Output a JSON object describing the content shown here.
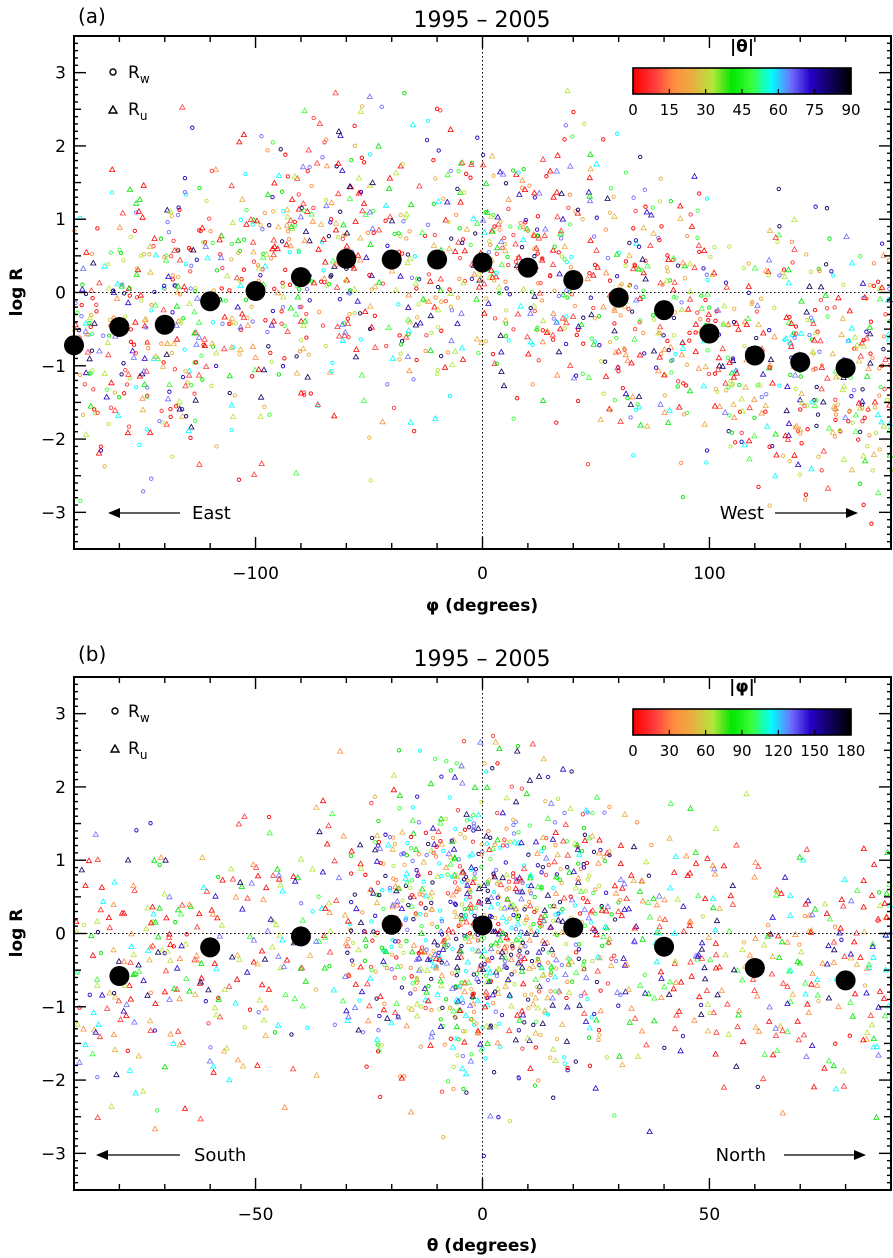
{
  "chart_data": [
    {
      "type": "scatter",
      "panel_label": "(a)",
      "title": "1995 – 2005",
      "xlabel": "φ (degrees)",
      "ylabel": "log R",
      "xlim": [
        -180,
        180
      ],
      "ylim": [
        -3.5,
        3.5
      ],
      "x_ticks": [
        -100,
        0,
        100
      ],
      "x_tick_labels": [
        "−100",
        "0",
        "100"
      ],
      "y_ticks": [
        -3,
        -2,
        -1,
        0,
        1,
        2,
        3
      ],
      "y_tick_labels": [
        "−3",
        "−2",
        "−1",
        "0",
        "1",
        "2",
        "3"
      ],
      "reference_lines": {
        "x0": 0,
        "y0": 0
      },
      "legend": {
        "placement": "top-left",
        "entries": [
          {
            "marker": "circle",
            "label": "R",
            "sub": "w"
          },
          {
            "marker": "triangle",
            "label": "R",
            "sub": "u"
          }
        ]
      },
      "colorbar": {
        "title": "|θ|",
        "placement": "top-right",
        "ticks": [
          "0",
          "15",
          "30",
          "45",
          "60",
          "75",
          "90"
        ],
        "range": [
          0,
          90
        ]
      },
      "direction_labels": {
        "left": "East",
        "right": "West"
      },
      "scatter_envelope": {
        "x": [
          -180,
          -160,
          -140,
          -120,
          -100,
          -80,
          -60,
          -40,
          -20,
          0,
          20,
          40,
          60,
          80,
          100,
          120,
          140,
          160,
          180
        ],
        "center": [
          -0.7,
          -0.5,
          -0.45,
          -0.1,
          0.1,
          0.3,
          0.5,
          0.5,
          0.5,
          0.4,
          0.35,
          0.2,
          -0.05,
          -0.25,
          -0.55,
          -0.85,
          -0.95,
          -1.05,
          -1.0
        ],
        "spread": [
          0.9,
          1.0,
          1.05,
          1.0,
          1.05,
          1.1,
          1.1,
          1.1,
          1.05,
          1.0,
          1.0,
          1.0,
          1.0,
          1.0,
          1.0,
          1.0,
          1.0,
          0.95,
          0.9
        ]
      },
      "series": [
        {
          "name": "binned mean",
          "x": [
            -180,
            -160,
            -140,
            -120,
            -100,
            -80,
            -60,
            -40,
            -20,
            0,
            20,
            40,
            60,
            80,
            100,
            120,
            140,
            160
          ],
          "y": [
            -0.72,
            -0.47,
            -0.44,
            -0.12,
            0.02,
            0.21,
            0.46,
            0.45,
            0.45,
            0.41,
            0.34,
            0.17,
            -0.07,
            -0.24,
            -0.56,
            -0.86,
            -0.95,
            -1.03
          ]
        }
      ]
    },
    {
      "type": "scatter",
      "panel_label": "(b)",
      "title": "1995 – 2005",
      "xlabel": "θ (degrees)",
      "ylabel": "log R",
      "xlim": [
        -90,
        90
      ],
      "ylim": [
        -3.5,
        3.5
      ],
      "x_ticks": [
        -50,
        0,
        50
      ],
      "x_tick_labels": [
        "−50",
        "0",
        "50"
      ],
      "y_ticks": [
        -3,
        -2,
        -1,
        0,
        1,
        2,
        3
      ],
      "y_tick_labels": [
        "−3",
        "−2",
        "−1",
        "0",
        "1",
        "2",
        "3"
      ],
      "reference_lines": {
        "x0": 0,
        "y0": 0
      },
      "legend": {
        "placement": "top-left",
        "entries": [
          {
            "marker": "circle",
            "label": "R",
            "sub": "w"
          },
          {
            "marker": "triangle",
            "label": "R",
            "sub": "u"
          }
        ]
      },
      "colorbar": {
        "title": "|φ|",
        "placement": "top-right",
        "ticks": [
          "0",
          "30",
          "60",
          "90",
          "120",
          "150",
          "180"
        ],
        "range": [
          0,
          180
        ]
      },
      "direction_labels": {
        "left": "South",
        "right": "North"
      },
      "scatter_envelope": {
        "x": [
          -90,
          -80,
          -70,
          -60,
          -50,
          -40,
          -30,
          -20,
          -10,
          0,
          10,
          20,
          30,
          40,
          50,
          60,
          70,
          80,
          90
        ],
        "center": [
          -0.3,
          -0.5,
          -0.3,
          -0.2,
          -0.2,
          -0.1,
          0.0,
          0.1,
          0.15,
          0.1,
          0.1,
          0.05,
          -0.1,
          -0.2,
          -0.3,
          -0.4,
          -0.5,
          -0.6,
          -0.4
        ],
        "spread": [
          0.9,
          0.95,
          0.95,
          0.9,
          0.9,
          0.9,
          1.0,
          1.05,
          1.1,
          1.15,
          1.1,
          1.05,
          1.0,
          0.95,
          0.95,
          0.95,
          0.95,
          0.9,
          0.9
        ]
      },
      "series": [
        {
          "name": "binned mean",
          "x": [
            -80,
            -60,
            -40,
            -20,
            0,
            20,
            40,
            60,
            80
          ],
          "y": [
            -0.58,
            -0.19,
            -0.04,
            0.12,
            0.11,
            0.08,
            -0.18,
            -0.47,
            -0.64
          ]
        }
      ]
    }
  ],
  "colormap": [
    "#ff0000",
    "#ff3c3c",
    "#ff8c40",
    "#e8b040",
    "#b4e63c",
    "#00e600",
    "#3cff3c",
    "#00ffff",
    "#7070ff",
    "#2800c8",
    "#100060",
    "#000000"
  ],
  "legend_marker_color": "#000000"
}
